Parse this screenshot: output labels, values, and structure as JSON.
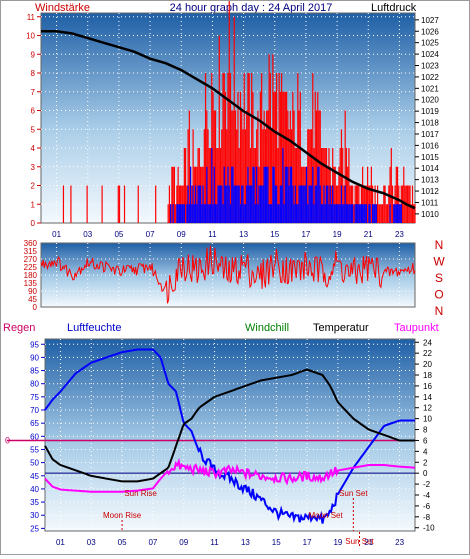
{
  "chart_data": [
    {
      "type": "line",
      "title": "24 hour graph day : 24 April 2017",
      "left_axis_label": "Windstärke",
      "right_axis_label": "Luftdruck",
      "x_ticks": [
        "01",
        "03",
        "05",
        "07",
        "09",
        "11",
        "13",
        "15",
        "17",
        "19",
        "21",
        "23"
      ],
      "left_ticks": [
        0,
        1,
        2,
        3,
        4,
        5,
        6,
        7,
        8,
        9,
        10,
        11
      ],
      "right_ticks": [
        1010,
        1011,
        1012,
        1013,
        1014,
        1015,
        1016,
        1017,
        1018,
        1019,
        1020,
        1021,
        1022,
        1023,
        1024,
        1025,
        1026,
        1027
      ],
      "ylim_left": [
        0,
        11.2
      ],
      "ylim_right": [
        1009.2,
        1027.6
      ],
      "xlim": [
        0,
        24
      ],
      "grid": true,
      "colors": {
        "gust": "#ff0000",
        "mean_wind": "#0000ff",
        "pressure": "#000000"
      },
      "series": [
        {
          "role": "pressure",
          "axis": "right",
          "x": [
            0,
            1,
            2,
            3,
            4,
            5,
            6,
            7,
            8,
            9,
            10,
            11,
            12,
            13,
            14,
            15,
            16,
            17,
            18,
            19,
            20,
            21,
            22,
            23,
            23.5,
            24
          ],
          "values": [
            1026,
            1026,
            1025.8,
            1025.4,
            1025,
            1024.6,
            1024.2,
            1023.6,
            1023.2,
            1022.6,
            1021.8,
            1021,
            1020,
            1019,
            1018.2,
            1017.2,
            1016.4,
            1015.4,
            1014.4,
            1013.6,
            1012.8,
            1012.2,
            1011.8,
            1011.2,
            1010.8,
            1010.5
          ]
        },
        {
          "role": "gust",
          "axis": "left",
          "x": [
            0,
            8,
            8.5,
            9,
            9.5,
            10,
            10.5,
            11,
            11.5,
            12,
            12.5,
            13,
            13.5,
            14,
            14.5,
            15,
            15.5,
            16,
            16.5,
            17,
            17.5,
            18,
            18.5,
            19,
            19.5,
            20,
            20.5,
            21,
            21.5,
            22,
            22.5,
            23,
            23.5,
            24
          ],
          "values": [
            0,
            0,
            3,
            2,
            5,
            3,
            7,
            9,
            8,
            11,
            9,
            8,
            7,
            6,
            9,
            8,
            7,
            6,
            7,
            5,
            7,
            5,
            4,
            3,
            5,
            3,
            2,
            3,
            2,
            2,
            3,
            2,
            3,
            1
          ]
        },
        {
          "role": "mean_wind",
          "axis": "left",
          "x": [
            0,
            8,
            8.5,
            9,
            9.5,
            10,
            10.5,
            11,
            11.5,
            12,
            12.5,
            13,
            13.5,
            14,
            14.5,
            15,
            15.5,
            16,
            16.5,
            17,
            17.5,
            18,
            18.5,
            19,
            19.5,
            20,
            20.5,
            21,
            21.5,
            22,
            22.5,
            23,
            23.5,
            24
          ],
          "values": [
            0,
            0,
            1,
            1,
            2,
            2,
            2,
            3,
            2,
            3,
            2,
            2,
            3,
            2,
            3,
            2,
            3,
            2,
            2,
            2,
            3,
            2,
            2,
            1,
            2,
            1,
            1,
            1,
            1,
            0,
            1,
            1,
            0,
            0
          ]
        }
      ]
    },
    {
      "type": "line",
      "right_labels": [
        "N",
        "W",
        "S",
        "O",
        "N"
      ],
      "left_ticks": [
        0,
        45,
        90,
        135,
        180,
        225,
        270,
        315,
        360
      ],
      "ylim": [
        0,
        360
      ],
      "xlim": [
        0,
        24
      ],
      "colors": {
        "direction": "#ff0000"
      },
      "series": [
        {
          "role": "direction",
          "x": [
            0,
            1,
            2,
            3,
            4,
            5,
            6,
            7,
            8,
            9,
            10,
            11,
            12,
            13,
            14,
            15,
            16,
            17,
            18,
            19,
            20,
            21,
            22,
            23,
            24
          ],
          "values": [
            240,
            260,
            180,
            250,
            230,
            200,
            210,
            230,
            90,
            250,
            200,
            270,
            180,
            240,
            160,
            250,
            200,
            230,
            190,
            240,
            180,
            230,
            190,
            200,
            220
          ]
        }
      ]
    },
    {
      "type": "line",
      "legend": [
        "Regen",
        "Luftfeuchte",
        "Windchill",
        "Temperatur",
        "Taupunkt"
      ],
      "left_ticks": [
        25,
        30,
        35,
        40,
        45,
        50,
        55,
        60,
        65,
        70,
        75,
        80,
        85,
        90,
        95
      ],
      "right_ticks": [
        -10,
        -8,
        -6,
        -4,
        -2,
        0,
        2,
        4,
        6,
        8,
        10,
        12,
        14,
        16,
        18,
        20,
        22,
        24
      ],
      "rain_axis_label": "0",
      "ylim_left": [
        24,
        97
      ],
      "ylim_right": [
        -10.6,
        24.6
      ],
      "xlim": [
        0,
        24
      ],
      "grid": true,
      "colors": {
        "Luftfeuchte": "#0000ff",
        "Temperatur": "#000000",
        "Taupunkt": "#ff00ff",
        "Regen": "#cc0066",
        "annotation": "#cc0000"
      },
      "annotations": [
        {
          "text": "Sun Rise",
          "x": 6.2
        },
        {
          "text": "Moon Rise",
          "x": 5.0
        },
        {
          "text": "Moon Set",
          "x": 18.2
        },
        {
          "text": "Sun Set",
          "x": 20.0
        },
        {
          "text": "Sun Set",
          "x": 20.4
        }
      ],
      "series": [
        {
          "name": "Luftfeuchte",
          "axis": "left",
          "x": [
            0,
            0.5,
            1,
            2,
            3,
            4,
            5,
            6,
            7,
            7.5,
            8,
            8.5,
            9,
            9.5,
            10,
            11,
            12,
            13,
            14,
            15,
            16,
            17,
            17.5,
            18,
            18.5,
            19,
            20,
            21,
            22,
            23,
            24
          ],
          "values": [
            70,
            74,
            77,
            84,
            88,
            90,
            92,
            93,
            93,
            90,
            80,
            77,
            65,
            62,
            54,
            47,
            44,
            40,
            36,
            31,
            29,
            29,
            30,
            28,
            31,
            38,
            48,
            56,
            64,
            66,
            66
          ]
        },
        {
          "name": "Temperatur",
          "axis": "right",
          "x": [
            0,
            0.5,
            1,
            2,
            3,
            4,
            5,
            6,
            7,
            7.5,
            8,
            8.5,
            9,
            9.5,
            10,
            11,
            12,
            13,
            14,
            15,
            16,
            17,
            17.5,
            18,
            18.5,
            19,
            20,
            21,
            22,
            23,
            24
          ],
          "values": [
            5,
            2.5,
            1.5,
            0.5,
            -0.5,
            -1,
            -1.5,
            -1.5,
            -1,
            0,
            1,
            5,
            9,
            10,
            12,
            14,
            15,
            16,
            17,
            17.5,
            18,
            19,
            18.5,
            18,
            16,
            13,
            10,
            8,
            7,
            6,
            6
          ]
        },
        {
          "name": "Taupunkt",
          "axis": "right",
          "x": [
            0,
            0.5,
            1,
            2,
            3,
            4,
            5,
            6,
            7,
            7.5,
            8,
            8.5,
            9,
            9.5,
            10,
            11,
            12,
            13,
            14,
            15,
            16,
            17,
            17.5,
            18,
            18.5,
            19,
            20,
            21,
            22,
            23,
            24
          ],
          "values": [
            -1,
            -2.5,
            -3,
            -3.2,
            -3.4,
            -3.4,
            -3.4,
            -3.2,
            -2.8,
            -1,
            0.5,
            1.5,
            1,
            0.8,
            0.5,
            0,
            0.5,
            0,
            -0.5,
            -0.8,
            -1,
            -0.5,
            -0.8,
            -0.8,
            0,
            0.5,
            1,
            1.5,
            1.5,
            1.2,
            1
          ]
        }
      ]
    }
  ]
}
